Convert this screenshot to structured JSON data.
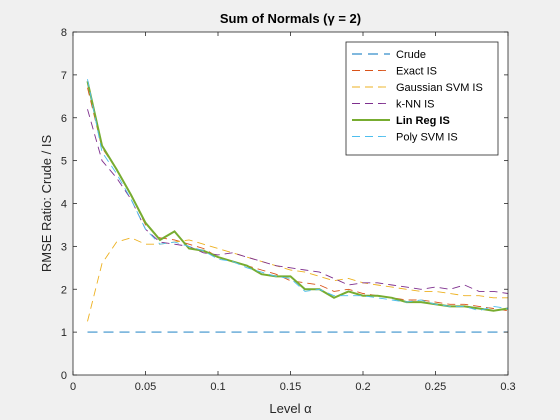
{
  "chart_data": {
    "type": "line",
    "title": "Sum of Normals (γ = 2)",
    "xlabel": "Level α",
    "ylabel": "RMSE Ratio: Crude / IS",
    "xlim": [
      0,
      0.3
    ],
    "ylim": [
      0,
      8
    ],
    "xticks": [
      0,
      0.05,
      0.1,
      0.15,
      0.2,
      0.25,
      0.3
    ],
    "xtick_labels": [
      "0",
      "0.05",
      "0.1",
      "0.15",
      "0.2",
      "0.25",
      "0.3"
    ],
    "yticks": [
      0,
      1,
      2,
      3,
      4,
      5,
      6,
      7,
      8
    ],
    "ytick_labels": [
      "0",
      "1",
      "2",
      "3",
      "4",
      "5",
      "6",
      "7",
      "8"
    ],
    "grid": false,
    "legend_position": "top-right",
    "x": [
      0.01,
      0.02,
      0.03,
      0.04,
      0.05,
      0.06,
      0.07,
      0.08,
      0.09,
      0.1,
      0.11,
      0.12,
      0.13,
      0.14,
      0.15,
      0.16,
      0.17,
      0.18,
      0.19,
      0.2,
      0.21,
      0.22,
      0.23,
      0.24,
      0.25,
      0.26,
      0.27,
      0.28,
      0.29,
      0.3
    ],
    "series": [
      {
        "name": "Crude",
        "color": "#0072bd",
        "dash": "long",
        "bold": false,
        "values": [
          1,
          1,
          1,
          1,
          1,
          1,
          1,
          1,
          1,
          1,
          1,
          1,
          1,
          1,
          1,
          1,
          1,
          1,
          1,
          1,
          1,
          1,
          1,
          1,
          1,
          1,
          1,
          1,
          1,
          1
        ]
      },
      {
        "name": "Exact IS",
        "color": "#d95319",
        "dash": "dash",
        "bold": false,
        "values": [
          6.7,
          5.3,
          4.8,
          4.2,
          3.5,
          3.2,
          3.15,
          3.05,
          2.95,
          2.75,
          2.65,
          2.55,
          2.45,
          2.35,
          2.2,
          2.15,
          2.1,
          1.95,
          2.0,
          1.9,
          1.85,
          1.8,
          1.75,
          1.75,
          1.7,
          1.65,
          1.65,
          1.6,
          1.55,
          1.5
        ]
      },
      {
        "name": "Gaussian SVM IS",
        "color": "#edb120",
        "dash": "dash",
        "bold": false,
        "values": [
          1.25,
          2.6,
          3.1,
          3.2,
          3.05,
          3.05,
          3.1,
          3.15,
          3.05,
          2.95,
          2.85,
          2.75,
          2.65,
          2.55,
          2.45,
          2.4,
          2.3,
          2.2,
          2.25,
          2.15,
          2.1,
          2.05,
          2.0,
          1.95,
          1.95,
          1.9,
          1.85,
          1.85,
          1.8,
          1.8
        ]
      },
      {
        "name": "k-NN IS",
        "color": "#7e2f8e",
        "dash": "dash",
        "bold": false,
        "values": [
          6.2,
          5.0,
          4.6,
          4.1,
          3.4,
          3.1,
          3.05,
          3.0,
          2.85,
          2.8,
          2.85,
          2.75,
          2.65,
          2.55,
          2.5,
          2.45,
          2.4,
          2.25,
          2.1,
          2.15,
          2.15,
          2.1,
          2.05,
          2.0,
          2.05,
          2.0,
          2.1,
          1.95,
          1.95,
          1.9
        ]
      },
      {
        "name": "Lin Reg IS",
        "color": "#77ac30",
        "dash": "solid",
        "bold": true,
        "values": [
          6.85,
          5.35,
          4.8,
          4.2,
          3.55,
          3.15,
          3.35,
          2.95,
          2.9,
          2.75,
          2.65,
          2.55,
          2.35,
          2.3,
          2.3,
          2.0,
          2.0,
          1.8,
          1.95,
          1.85,
          1.85,
          1.8,
          1.7,
          1.7,
          1.65,
          1.6,
          1.6,
          1.55,
          1.5,
          1.55
        ]
      },
      {
        "name": "Poly SVM IS",
        "color": "#4dbeee",
        "dash": "dash",
        "bold": false,
        "values": [
          6.9,
          5.2,
          4.7,
          4.1,
          3.4,
          3.05,
          3.1,
          3.0,
          2.9,
          2.7,
          2.65,
          2.5,
          2.4,
          2.3,
          2.25,
          1.95,
          2.0,
          1.85,
          1.85,
          1.85,
          1.8,
          1.75,
          1.7,
          1.75,
          1.65,
          1.6,
          1.6,
          1.5,
          1.6,
          1.55
        ]
      }
    ]
  }
}
